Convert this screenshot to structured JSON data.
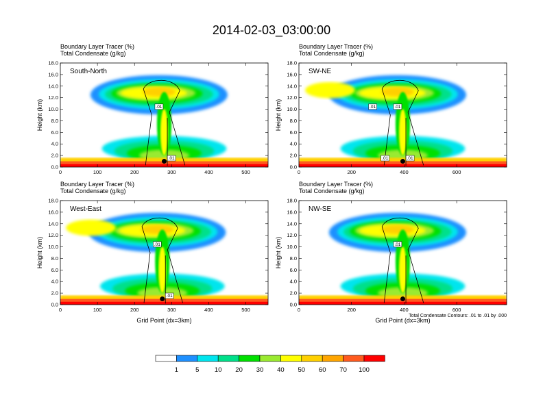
{
  "title": "2014-02-03_03:00:00",
  "legend": {
    "colors": [
      "#ffffff",
      "#1e90ff",
      "#00e5ee",
      "#00e08a",
      "#00e000",
      "#9aea30",
      "#ffff00",
      "#ffd000",
      "#ffa500",
      "#ff5a1e",
      "#ff0000"
    ],
    "labels": [
      "1",
      "5",
      "10",
      "20",
      "30",
      "40",
      "50",
      "60",
      "70",
      "100"
    ]
  },
  "contour_note": "Total Condensate Contours: .01 to .01 by .000",
  "chart_data": [
    {
      "type": "heatmap",
      "name": "South-North",
      "subtitle_1": "Boundary Layer Tracer   (%)",
      "subtitle_2": "Total Condensate   (g/kg)",
      "ylabel": "Height (km)",
      "xlabel": "",
      "ylim": [
        0,
        18
      ],
      "yticks": [
        "0.0",
        "2.0",
        "4.0",
        "6.0",
        "8.0",
        "10.0",
        "12.0",
        "14.0",
        "16.0",
        "18.0"
      ],
      "xlim": [
        0,
        560
      ],
      "xticks": [
        0,
        100,
        200,
        300,
        400,
        500
      ],
      "contour_labels": [
        ".01",
        ".01"
      ],
      "marker_x": 280
    },
    {
      "type": "heatmap",
      "name": "SW-NE",
      "subtitle_1": "Boundary Layer Tracer   (%)",
      "subtitle_2": "Total Condensate   (g/kg)",
      "ylabel": "Height (km)",
      "xlabel": "",
      "ylim": [
        0,
        18
      ],
      "yticks": [
        "0.0",
        "2.0",
        "4.0",
        "6.0",
        "8.0",
        "10.0",
        "12.0",
        "14.0",
        "16.0",
        "18.0"
      ],
      "xlim": [
        0,
        790
      ],
      "xticks": [
        0,
        200,
        400,
        600
      ],
      "contour_labels": [
        ".01",
        ".01",
        ".01",
        ".01"
      ],
      "marker_x": 395
    },
    {
      "type": "heatmap",
      "name": "West-East",
      "subtitle_1": "Boundary Layer Tracer   (%)",
      "subtitle_2": "Total Condensate   (g/kg)",
      "ylabel": "Height (km)",
      "xlabel": "Grid Point (dx=3km)",
      "ylim": [
        0,
        18
      ],
      "yticks": [
        "0.0",
        "2.0",
        "4.0",
        "6.0",
        "8.0",
        "10.0",
        "12.0",
        "14.0",
        "16.0",
        "18.0"
      ],
      "xlim": [
        0,
        560
      ],
      "xticks": [
        0,
        100,
        200,
        300,
        400,
        500
      ],
      "contour_labels": [
        ".01",
        ".01"
      ],
      "marker_x": 275
    },
    {
      "type": "heatmap",
      "name": "NW-SE",
      "subtitle_1": "Boundary Layer Tracer   (%)",
      "subtitle_2": "Total Condensate   (g/kg)",
      "ylabel": "Height (km)",
      "xlabel": "Grid Point (dx=3km)",
      "ylim": [
        0,
        18
      ],
      "yticks": [
        "0.0",
        "2.0",
        "4.0",
        "6.0",
        "8.0",
        "10.0",
        "12.0",
        "14.0",
        "16.0",
        "18.0"
      ],
      "xlim": [
        0,
        790
      ],
      "xticks": [
        0,
        200,
        400,
        600
      ],
      "contour_labels": [
        ".01"
      ],
      "marker_x": 395
    }
  ]
}
